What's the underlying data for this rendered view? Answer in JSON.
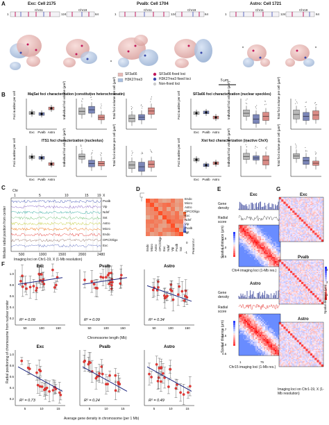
{
  "panels": [
    "A",
    "B",
    "C",
    "D",
    "E",
    "F",
    "G"
  ],
  "panel_a": {
    "cells": [
      {
        "title": "Exc: Cell 2175",
        "chrA": "Chr11",
        "chrB": "Chr19",
        "start": "1",
        "mid": "124",
        "end": "64"
      },
      {
        "title": "Pvalb: Cell 1704",
        "chrA": "Chr11",
        "chrB": "Chr19",
        "start": "1",
        "mid": "124",
        "end": "64"
      },
      {
        "title": "Astro: Cell 1721",
        "chrA": "Chr11",
        "chrB": "Chr19",
        "start": "1",
        "mid": "124",
        "end": "64"
      }
    ],
    "legend": {
      "sf3a66": "SF3a66",
      "h3k27me3": "H3K27me3",
      "sf3_loci": "SF3a66 fixed loci",
      "h3_loci": "H3K27me3 fixed loci",
      "non_loci": "Non-fixed loci"
    },
    "scale": "5 μm"
  },
  "panel_b": {
    "titles": [
      "MajSat foci characterization (constitutive heterochromatin)",
      "SF3a66 foci characterization (nuclear speckles)",
      "ITS1 foci characterization (nucleolus)",
      "Xist foci characterization (inactive ChrX)"
    ],
    "ylabels": [
      "Foci number per cell",
      "Individual foci volume (μm³)",
      "Total foci volume per cell (μm³)"
    ],
    "groups": [
      "Exc",
      "Pvalb",
      "Astro"
    ]
  },
  "panel_c": {
    "chr_label": "Chr",
    "chr_ticks": [
      "1",
      "5",
      "10",
      "15",
      "19",
      "X"
    ],
    "x_ticks": [
      "500",
      "1000",
      "1500",
      "2000",
      "2480"
    ],
    "xlabel": "Imaging loci on Chr1-19, X (1-Mb resolution)",
    "ylabel": "Median radial position from center",
    "rows": [
      "Pvalb",
      "Vip",
      "Ndnf",
      "Sst",
      "Astro",
      "Micro",
      "Endo",
      "OPC/Oligo",
      "Exc"
    ]
  },
  "panel_d": {
    "rows": [
      "Endo",
      "Micro",
      "Astro",
      "OPC/Oligo",
      "Exc",
      "Ndnf",
      "Vip",
      "Pvalb",
      "Sst"
    ],
    "cbar_label": "Pearson's r",
    "cbar_ticks": [
      "1",
      "0",
      "-1"
    ]
  },
  "panel_e": {
    "exc_title": "Exc",
    "astro_title": "Astro",
    "gene_density": "Gene density",
    "radial_score": "Radial score",
    "spatial_distance": "Spatial distance (μm)",
    "exc_xlabel": "Chr4 imaging loci (1-Mb res.)",
    "astro_xlabel": "Chr15 imaging loci (1-Mb res.)",
    "exc_tick": "100",
    "astro_ticks": [
      "1",
      "75"
    ],
    "cbar1": [
      "1.5",
      "1.0",
      "0.5"
    ],
    "cbar2": [
      "1.7",
      "1.5",
      "1.0",
      "0.5"
    ]
  },
  "panel_f": {
    "top_titles": [
      "Exc",
      "Pvalb",
      "Astro"
    ],
    "bottom_titles": [
      "Exc",
      "Pvalb",
      "Astro"
    ],
    "top_r2": [
      "R² = 0.09",
      "R² = 0.09",
      "R² = 0.34"
    ],
    "bottom_r2": [
      "R² = 0.73",
      "R² = 0.24",
      "R² = 0.49"
    ],
    "top_xlabel": "Chromosome length (Mb)",
    "bottom_xlabel": "Average gene density in chromosome (per 1 Mb)",
    "ylabel": "Radial positioning of chromosome from nuclear center",
    "top_xticks": [
      "50",
      "100",
      "150"
    ],
    "bottom_xticks": [
      "5",
      "10",
      "15"
    ],
    "yticks": [
      "1.0",
      "0.8",
      "0.6",
      "0.4",
      "0.2"
    ]
  },
  "panel_g": {
    "titles": [
      "Exc",
      "Pvalb",
      "Astro"
    ],
    "xlabel": "Imaging loci on Chr1-19, X (1-Mb resolution)",
    "cbar_label": "Spatial distance (μm)",
    "cbar_ticks": [
      "3",
      "2",
      "1"
    ]
  }
}
